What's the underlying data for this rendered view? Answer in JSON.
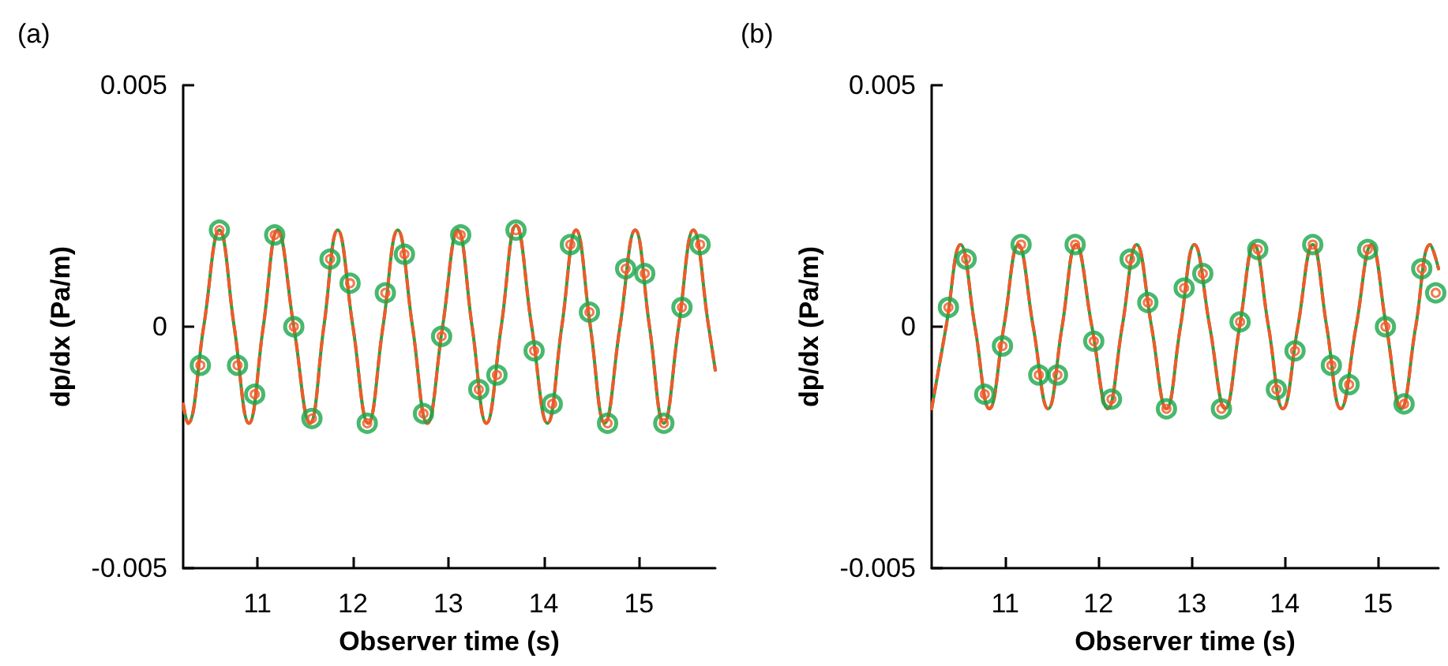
{
  "chart_data": [
    {
      "type": "line",
      "title": "(a)",
      "xlabel": "Observer time (s)",
      "ylabel": "dp/dx (Pa/m)",
      "xlim": [
        10.22,
        15.8
      ],
      "xticks": [
        11,
        12,
        13,
        14,
        15
      ],
      "ylim": [
        -0.005,
        0.005
      ],
      "yticks": [
        -0.005,
        0,
        0.005
      ],
      "series": [
        {
          "type": "line",
          "color": "#1aa64a",
          "line_style": "solid",
          "x": [
            10.22,
            10.27,
            10.435,
            10.6,
            10.755,
            10.91,
            11.06,
            11.21,
            11.38,
            11.55,
            11.695,
            11.84,
            12.0,
            12.16,
            12.315,
            12.47,
            12.625,
            12.78,
            12.94,
            13.1,
            13.25,
            13.4,
            13.555,
            13.71,
            13.875,
            14.04,
            14.19,
            14.34,
            14.49,
            14.64,
            14.8,
            14.96,
            15.11,
            15.26,
            15.415,
            15.57,
            15.73,
            15.8
          ],
          "values": [
            -0.0016,
            -0.002,
            0,
            0.002,
            0,
            -0.002,
            0,
            0.002,
            0,
            -0.002,
            0,
            0.002,
            0,
            -0.002,
            0,
            0.002,
            0,
            -0.002,
            0,
            0.002,
            0,
            -0.002,
            0,
            0.0021,
            0,
            -0.002,
            0,
            0.002,
            0,
            -0.002,
            0,
            0.002,
            0,
            -0.002,
            0,
            0.002,
            0,
            -0.0009
          ]
        },
        {
          "type": "line",
          "color": "#f05a28",
          "line_style": "dashed",
          "x": [
            10.22,
            10.27,
            10.435,
            10.6,
            10.755,
            10.91,
            11.06,
            11.21,
            11.38,
            11.55,
            11.695,
            11.84,
            12.0,
            12.16,
            12.315,
            12.47,
            12.625,
            12.78,
            12.94,
            13.1,
            13.25,
            13.4,
            13.555,
            13.71,
            13.875,
            14.04,
            14.19,
            14.34,
            14.49,
            14.64,
            14.8,
            14.96,
            15.11,
            15.26,
            15.415,
            15.57,
            15.73,
            15.8
          ],
          "values": [
            -0.0016,
            -0.002,
            0,
            0.002,
            0,
            -0.002,
            0,
            0.002,
            0,
            -0.002,
            0,
            0.002,
            0,
            -0.002,
            0,
            0.002,
            0,
            -0.002,
            0,
            0.002,
            0,
            -0.002,
            0,
            0.0021,
            0,
            -0.002,
            0,
            0.002,
            0,
            -0.002,
            0,
            0.002,
            0,
            -0.002,
            0,
            0.002,
            0,
            -0.0009
          ]
        },
        {
          "type": "scatter",
          "color": "#1aa64a",
          "marker": "circle",
          "x": [
            10.4,
            10.6,
            10.79,
            10.97,
            11.18,
            11.38,
            11.57,
            11.76,
            11.97,
            12.15,
            12.34,
            12.54,
            12.74,
            12.93,
            13.13,
            13.32,
            13.51,
            13.71,
            13.9,
            14.09,
            14.28,
            14.48,
            14.67,
            14.86,
            15.06,
            15.26,
            15.45,
            15.64
          ],
          "values": [
            -0.0008,
            0.002,
            -0.0008,
            -0.0014,
            0.0019,
            0.0,
            -0.0019,
            0.0014,
            0.0009,
            -0.002,
            0.0007,
            0.0015,
            -0.0018,
            -0.0002,
            0.0019,
            -0.0013,
            -0.001,
            0.002,
            -0.0005,
            -0.0016,
            0.0017,
            0.0003,
            -0.002,
            0.0012,
            0.0011,
            -0.002,
            0.0004,
            0.0017
          ]
        },
        {
          "type": "scatter",
          "color": "#f05a28",
          "marker": "circle",
          "x": [
            10.4,
            10.6,
            10.79,
            10.97,
            11.18,
            11.38,
            11.57,
            11.76,
            11.97,
            12.15,
            12.34,
            12.54,
            12.74,
            12.93,
            13.13,
            13.32,
            13.51,
            13.71,
            13.9,
            14.09,
            14.28,
            14.48,
            14.67,
            14.86,
            15.06,
            15.26,
            15.45,
            15.64
          ],
          "values": [
            -0.0008,
            0.002,
            -0.0008,
            -0.0014,
            0.0019,
            0.0,
            -0.0019,
            0.0014,
            0.0009,
            -0.002,
            0.0007,
            0.0015,
            -0.0018,
            -0.0002,
            0.0019,
            -0.0013,
            -0.001,
            0.002,
            -0.0005,
            -0.0016,
            0.0017,
            0.0003,
            -0.002,
            0.0012,
            0.0011,
            -0.002,
            0.0004,
            0.0017
          ]
        }
      ]
    },
    {
      "type": "line",
      "title": "(b)",
      "xlabel": "Observer time (s)",
      "ylabel": "dp/dx (Pa/m)",
      "xlim": [
        10.21,
        15.65
      ],
      "xticks": [
        11,
        12,
        13,
        14,
        15
      ],
      "ylim": [
        -0.005,
        0.005
      ],
      "yticks": [
        -0.005,
        0,
        0.005
      ],
      "series": [
        {
          "type": "line",
          "color": "#1aa64a",
          "line_style": "solid",
          "x": [
            10.21,
            10.365,
            10.52,
            10.675,
            10.83,
            10.985,
            11.14,
            11.3,
            11.46,
            11.61,
            11.76,
            11.93,
            12.1,
            12.255,
            12.41,
            12.57,
            12.73,
            12.88,
            13.03,
            13.195,
            13.36,
            13.515,
            13.67,
            13.825,
            13.98,
            14.14,
            14.3,
            14.45,
            14.6,
            14.765,
            14.93,
            15.09,
            15.25,
            15.405,
            15.56,
            15.65
          ],
          "values": [
            -0.0017,
            0,
            0.0017,
            0,
            -0.0017,
            0,
            0.0017,
            0,
            -0.0017,
            0,
            0.0017,
            0,
            -0.0017,
            0,
            0.0017,
            0,
            -0.0017,
            0,
            0.0017,
            0,
            -0.0017,
            0,
            0.0017,
            0,
            -0.0017,
            0,
            0.0017,
            0,
            -0.0017,
            0,
            0.0017,
            0,
            -0.0017,
            0,
            0.0017,
            0.0012
          ]
        },
        {
          "type": "line",
          "color": "#f05a28",
          "line_style": "dashed",
          "x": [
            10.21,
            10.365,
            10.52,
            10.675,
            10.83,
            10.985,
            11.14,
            11.3,
            11.46,
            11.61,
            11.76,
            11.93,
            12.1,
            12.255,
            12.41,
            12.57,
            12.73,
            12.88,
            13.03,
            13.195,
            13.36,
            13.515,
            13.67,
            13.825,
            13.98,
            14.14,
            14.3,
            14.45,
            14.6,
            14.765,
            14.93,
            15.09,
            15.25,
            15.405,
            15.56,
            15.65
          ],
          "values": [
            -0.0017,
            0,
            0.0017,
            0,
            -0.0017,
            0,
            0.0017,
            0,
            -0.0017,
            0,
            0.0017,
            0,
            -0.0017,
            0,
            0.0017,
            0,
            -0.0017,
            0,
            0.0017,
            0,
            -0.0017,
            0,
            0.0017,
            0,
            -0.0017,
            0,
            0.0017,
            0,
            -0.0017,
            0,
            0.0017,
            0,
            -0.0017,
            0,
            0.0017,
            0.0012
          ]
        },
        {
          "type": "scatter",
          "color": "#1aa64a",
          "marker": "circle",
          "x": [
            10.39,
            10.58,
            10.78,
            10.97,
            11.17,
            11.36,
            11.56,
            11.75,
            11.95,
            12.14,
            12.34,
            12.53,
            12.73,
            12.92,
            13.12,
            13.32,
            13.52,
            13.71,
            13.91,
            14.11,
            14.3,
            14.5,
            14.69,
            14.89,
            15.08,
            15.28,
            15.47,
            15.62
          ],
          "values": [
            0.0004,
            0.0014,
            -0.0014,
            -0.0004,
            0.0017,
            -0.001,
            -0.001,
            0.0017,
            -0.0003,
            -0.0015,
            0.0014,
            0.0005,
            -0.0017,
            0.0008,
            0.0011,
            -0.0017,
            0.0001,
            0.0016,
            -0.0013,
            -0.0005,
            0.0017,
            -0.0008,
            -0.0012,
            0.0016,
            0.0,
            -0.0016,
            0.0012,
            0.0007
          ]
        },
        {
          "type": "scatter",
          "color": "#f05a28",
          "marker": "circle",
          "x": [
            10.39,
            10.58,
            10.78,
            10.97,
            11.17,
            11.36,
            11.56,
            11.75,
            11.95,
            12.14,
            12.34,
            12.53,
            12.73,
            12.92,
            13.12,
            13.32,
            13.52,
            13.71,
            13.91,
            14.11,
            14.3,
            14.5,
            14.69,
            14.89,
            15.08,
            15.28,
            15.47,
            15.62
          ],
          "values": [
            0.0004,
            0.0014,
            -0.0014,
            -0.0004,
            0.0017,
            -0.001,
            -0.001,
            0.0017,
            -0.0003,
            -0.0015,
            0.0014,
            0.0005,
            -0.0017,
            0.0008,
            0.0011,
            -0.0017,
            0.0001,
            0.0016,
            -0.0013,
            -0.0005,
            0.0017,
            -0.0008,
            -0.0012,
            0.0016,
            0.0,
            -0.0016,
            0.0012,
            0.0007
          ]
        }
      ]
    }
  ]
}
